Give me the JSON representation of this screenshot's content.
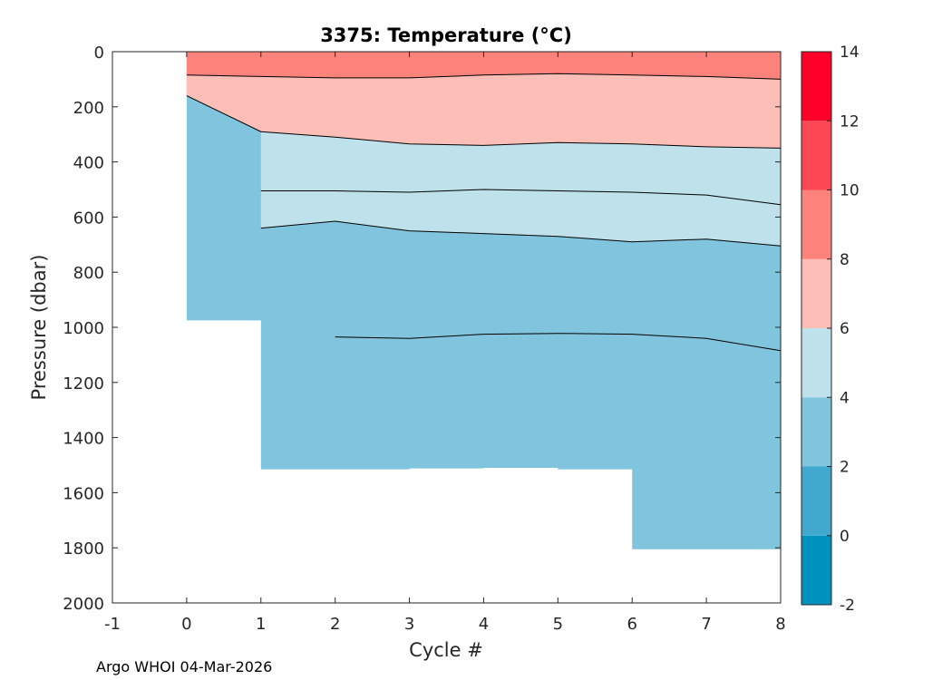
{
  "chart_data": {
    "type": "contour",
    "title": "3375:  Temperature (°C)",
    "xlabel": "Cycle #",
    "ylabel": "Pressure (dbar)",
    "xlim": [
      -1,
      8
    ],
    "ylim": [
      0,
      2000
    ],
    "y_reversed": true,
    "xticks": [
      "-1",
      "0",
      "1",
      "2",
      "3",
      "4",
      "5",
      "6",
      "7",
      "8"
    ],
    "yticks": [
      "0",
      "200",
      "400",
      "600",
      "800",
      "1000",
      "1200",
      "1400",
      "1600",
      "1800",
      "2000"
    ],
    "cycles": [
      0,
      1,
      2,
      3,
      4,
      5,
      6,
      7,
      8
    ],
    "max_pressure": [
      160,
      975,
      1515,
      1515,
      1512,
      1510,
      1515,
      1805,
      1805
    ],
    "isotherms": [
      {
        "level": 8,
        "pressure": [
          85,
          90,
          95,
          95,
          85,
          80,
          85,
          90,
          100
        ]
      },
      {
        "level": 6,
        "pressure": [
          160,
          290,
          310,
          335,
          340,
          330,
          335,
          345,
          350
        ]
      },
      {
        "level": 4,
        "pressure": [
          null,
          505,
          505,
          510,
          500,
          505,
          510,
          520,
          555
        ]
      },
      {
        "level": 2,
        "pressure": [
          null,
          640,
          615,
          650,
          660,
          670,
          690,
          680,
          705
        ]
      },
      {
        "level": 0,
        "pressure": [
          null,
          null,
          1035,
          1040,
          1025,
          1022,
          1025,
          1040,
          1085
        ]
      }
    ],
    "colorbar": {
      "levels": [
        "-2",
        "0",
        "2",
        "4",
        "6",
        "8",
        "10",
        "12",
        "14"
      ],
      "colors": [
        "#0092BE",
        "#41A9CD",
        "#80C4DD",
        "#BEE1EC",
        "#FCBEB6",
        "#FC827C",
        "#FD4654",
        "#FF0029"
      ]
    },
    "band_colors": {
      "band_2_4": "#80C4DD",
      "band_4_6": "#BEE1EC",
      "band_6_8": "#FCBEB6",
      "band_8_10": "#FC827C"
    }
  },
  "footer": "Argo WHOI 04-Mar-2026"
}
